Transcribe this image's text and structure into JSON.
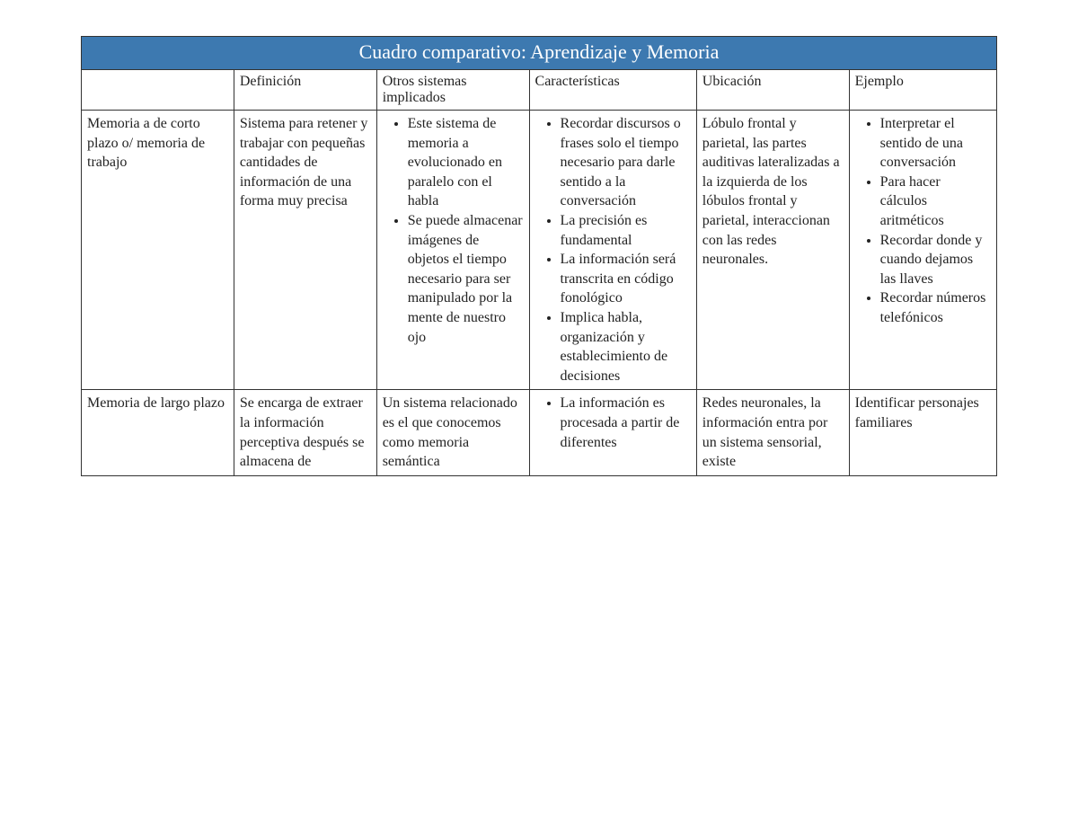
{
  "table": {
    "title": "Cuadro comparativo: Aprendizaje y Memoria",
    "title_bg": "#3d79b0",
    "title_color": "#ffffff",
    "border_color": "#333333",
    "font_family": "Georgia, serif",
    "columns": [
      {
        "header": "",
        "width_pct": 15.5
      },
      {
        "header": "Definición",
        "width_pct": 14.5
      },
      {
        "header": "Otros sistemas implicados",
        "width_pct": 15.5
      },
      {
        "header": "Características",
        "width_pct": 17
      },
      {
        "header": "Ubicación",
        "width_pct": 15.5
      },
      {
        "header": "Ejemplo",
        "width_pct": 15
      }
    ],
    "rows": [
      {
        "label": "Memoria a de corto plazo o/ memoria de trabajo",
        "definicion": "Sistema para retener y trabajar con pequeñas cantidades de información de una forma muy precisa",
        "otros": {
          "type": "list",
          "items": [
            "Este sistema de memoria a evolucionado en paralelo con el habla",
            "Se puede almacenar imágenes de objetos el tiempo necesario para ser manipulado por la mente de nuestro ojo"
          ]
        },
        "caracteristicas": {
          "type": "list",
          "items": [
            "Recordar discursos o frases solo el tiempo necesario para darle sentido a la conversación",
            "La precisión es fundamental",
            "La información será transcrita en código fonológico",
            "Implica habla, organización y establecimiento de decisiones"
          ]
        },
        "ubicacion": "Lóbulo frontal y parietal, las partes auditivas lateralizadas a la izquierda de los lóbulos frontal y parietal, interaccionan con las redes neuronales.",
        "ejemplo": {
          "type": "list",
          "items": [
            "Interpretar el sentido de una conversación",
            "Para hacer cálculos aritméticos",
            "Recordar donde y cuando dejamos las llaves",
            "Recordar números telefónicos"
          ]
        }
      },
      {
        "label": "Memoria de largo plazo",
        "definicion": "Se encarga de extraer la información perceptiva después se almacena de",
        "otros": {
          "type": "text",
          "text": "Un sistema relacionado es el que conocemos como memoria semántica"
        },
        "caracteristicas": {
          "type": "list",
          "items": [
            "La información es procesada a partir de diferentes"
          ]
        },
        "ubicacion": "Redes neuronales, la información entra por un sistema sensorial, existe",
        "ejemplo": {
          "type": "text",
          "text": "Identificar personajes familiares"
        }
      }
    ]
  }
}
